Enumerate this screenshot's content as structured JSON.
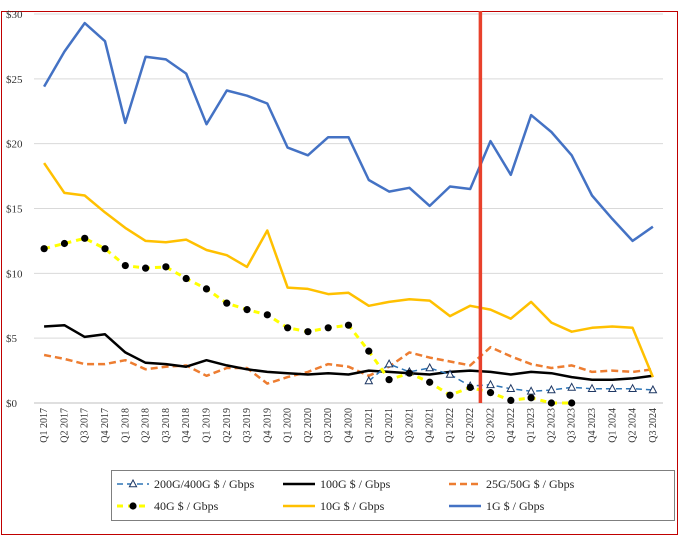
{
  "chart_data": {
    "type": "line",
    "title": "",
    "xlabel": "",
    "ylabel": "",
    "ylim": [
      0,
      30
    ],
    "yticks": [
      0,
      5,
      10,
      15,
      20,
      25,
      30
    ],
    "ytick_labels": [
      "$0",
      "$5",
      "$10",
      "$15",
      "$20",
      "$25",
      "$30"
    ],
    "grid": "horizontal",
    "legend_position": "bottom",
    "categories": [
      "Q1 2017",
      "Q2 2017",
      "Q3 2017",
      "Q4 2017",
      "Q1 2018",
      "Q2 2018",
      "Q3 2018",
      "Q4 2018",
      "Q1 2019",
      "Q2 2019",
      "Q3 2019",
      "Q4 2019",
      "Q1 2020",
      "Q2 2020",
      "Q3 2020",
      "Q4 2020",
      "Q1 2021",
      "Q2 2021",
      "Q3 2021",
      "Q4 2021",
      "Q1 2022",
      "Q2 2022",
      "Q3 2022",
      "Q4 2022",
      "Q1 2023",
      "Q2 2023",
      "Q3 2023",
      "Q4 2023",
      "Q1 2024",
      "Q2 2024",
      "Q3 2024"
    ],
    "marker_line": {
      "category": "Q2 2022",
      "position": "right",
      "color": "#e8412c"
    },
    "series": [
      {
        "name": "200G/400G $ / Gbps",
        "color": "#2e75b6",
        "style": "dashed",
        "marker": "triangle",
        "values": [
          null,
          null,
          null,
          null,
          null,
          null,
          null,
          null,
          null,
          null,
          null,
          null,
          null,
          null,
          null,
          null,
          1.7,
          3.0,
          2.4,
          2.7,
          2.2,
          1.3,
          1.4,
          1.1,
          0.9,
          1.0,
          1.2,
          1.1,
          1.1,
          1.1,
          1.0
        ]
      },
      {
        "name": "100G $ / Gbps",
        "color": "#000000",
        "style": "solid",
        "marker": "none",
        "values": [
          5.9,
          6.0,
          5.1,
          5.3,
          3.9,
          3.1,
          3.0,
          2.8,
          3.3,
          2.9,
          2.6,
          2.4,
          2.3,
          2.2,
          2.3,
          2.2,
          2.5,
          2.4,
          2.3,
          2.2,
          2.4,
          2.5,
          2.4,
          2.2,
          2.4,
          2.3,
          2.0,
          1.8,
          1.8,
          1.9,
          2.1
        ]
      },
      {
        "name": "25G/50G $ / Gbps",
        "color": "#ed7d31",
        "style": "dashed",
        "marker": "none",
        "values": [
          3.7,
          3.4,
          3.0,
          3.0,
          3.3,
          2.6,
          2.8,
          2.9,
          2.1,
          2.7,
          2.7,
          1.5,
          2.0,
          2.4,
          3.0,
          2.8,
          2.1,
          2.8,
          3.9,
          3.5,
          3.2,
          2.9,
          4.3,
          3.6,
          3.0,
          2.7,
          2.9,
          2.4,
          2.5,
          2.4,
          2.6
        ]
      },
      {
        "name": "40G $ / Gbps",
        "color": "#ffff00",
        "style": "dashed",
        "marker": "circle",
        "values": [
          11.9,
          12.3,
          12.7,
          11.9,
          10.6,
          10.4,
          10.5,
          9.6,
          8.8,
          7.7,
          7.2,
          6.8,
          5.8,
          5.5,
          5.8,
          6.0,
          4.0,
          1.8,
          2.3,
          1.6,
          0.6,
          1.2,
          0.8,
          0.2,
          0.4,
          0.0,
          0.0,
          null,
          null,
          null,
          null
        ]
      },
      {
        "name": "10G $ / Gbps",
        "color": "#ffc000",
        "style": "solid",
        "marker": "none",
        "values": [
          18.5,
          16.2,
          16.0,
          14.7,
          13.5,
          12.5,
          12.4,
          12.6,
          11.8,
          11.4,
          10.5,
          13.3,
          8.9,
          8.8,
          8.4,
          8.5,
          7.5,
          7.8,
          8.0,
          7.9,
          6.7,
          7.5,
          7.2,
          6.5,
          7.8,
          6.2,
          5.5,
          5.8,
          5.9,
          5.8,
          2.0
        ]
      },
      {
        "name": "1G $ / Gbps",
        "color": "#4472c4",
        "style": "solid",
        "marker": "none",
        "values": [
          24.4,
          27.1,
          29.3,
          27.9,
          21.6,
          26.7,
          26.5,
          25.4,
          21.5,
          24.1,
          23.7,
          23.1,
          19.7,
          19.1,
          20.5,
          20.5,
          17.2,
          16.3,
          16.6,
          15.2,
          16.7,
          16.5,
          20.2,
          17.6,
          22.2,
          20.9,
          19.1,
          16.0,
          14.2,
          12.5,
          13.6
        ]
      }
    ]
  }
}
